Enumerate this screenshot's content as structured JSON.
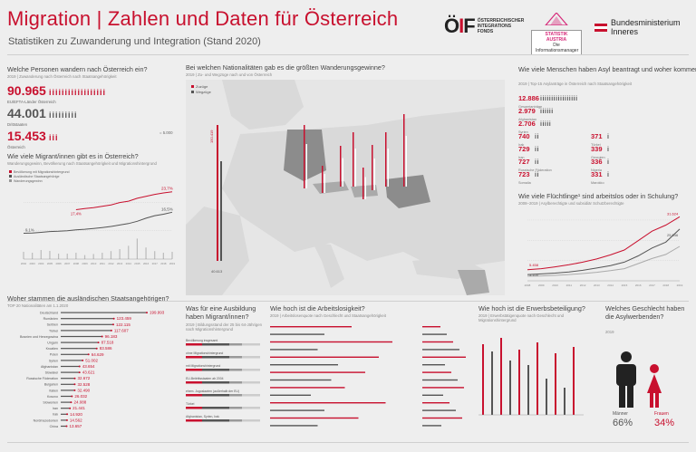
{
  "header": {
    "title": "Migration | Zahlen und Daten für Österreich",
    "subtitle": "Statistiken zu Zuwanderung und Integration (Stand 2020)",
    "logo_oif_line1": "ÖSTERREICHISCHER",
    "logo_oif_line2": "INTEGRATIONS",
    "logo_oif_line3": "FONDS",
    "logo_sa": "STATISTIK AUSTRIA",
    "logo_sa_sub": "Die Informationsmanager",
    "logo_bmi_1": "Bundesministerium",
    "logo_bmi_2": "Inneres"
  },
  "colors": {
    "accent": "#c8102e",
    "dark": "#555555",
    "background": "#eeeeee",
    "map_land": "#d9d9d9",
    "map_highlight": "#8c8c8c"
  },
  "zuwanderung": {
    "title": "Welche Personen wandern nach Österreich ein?",
    "sub": "2019 | Zuwanderung nach Österreich nach Staatsangehörigkeit",
    "rows": [
      {
        "value": "90.965",
        "label": "EU/EFTA-Länder Österreich",
        "style": "red",
        "icons": 18
      },
      {
        "value": "44.001",
        "label": "Drittstaaten",
        "style": "dark",
        "icons": 9
      },
      {
        "value": "15.453",
        "label": "Österreich",
        "style": "red",
        "icons": 3
      }
    ],
    "legend": "= 5.000"
  },
  "migrant_share": {
    "title": "Wie viele Migrant/innen gibt es in Österreich?",
    "sub": "Wanderungsgewinn, Bevölkerung nach Staatsangehörigkeit und Migrationshintergrund",
    "legend": [
      "Bevölkerung mit Migrationshintergrund",
      "Ausländische Staatsangehörige",
      "Wanderungsgewinn"
    ]
  },
  "map": {
    "title": "Bei welchen Nationalitäten gab es die größten Wanderungsgewinne?",
    "sub": "2019 | Zu- und Wegzüge nach und von Österreich",
    "legend": [
      "Zuzüge",
      "Wegzüge"
    ],
    "totals_left": [
      "150.419",
      "40.613"
    ]
  },
  "asyl": {
    "title": "Wie viele Menschen haben Asyl beantragt und woher kommen sie?",
    "sub": "2019 | Top-15 Asylanträge in Österreich nach Staatsangehörigkeit",
    "top": [
      {
        "value": "12.886",
        "label": "Gesamtanträge",
        "icons": 17
      },
      {
        "value": "2.979",
        "label": "Afghanistan",
        "icons": 6
      },
      {
        "value": "2.706",
        "label": "Syrien",
        "icons": 5
      }
    ],
    "left": [
      {
        "value": "740",
        "label": "Irak",
        "icons": 2
      },
      {
        "value": "729",
        "label": "Iran",
        "icons": 2
      },
      {
        "value": "727",
        "label": "Russische Föderation",
        "icons": 2
      },
      {
        "value": "723",
        "label": "Somalia",
        "icons": 2
      }
    ],
    "right": [
      {
        "value": "371",
        "label": "Türkei",
        "icons": 1
      },
      {
        "value": "339",
        "label": "Georgien",
        "icons": 1
      },
      {
        "value": "336",
        "label": "Nigeria",
        "icons": 1
      },
      {
        "value": "331",
        "label": "Marokko",
        "icons": 1
      }
    ]
  },
  "fluechtlinge": {
    "title": "Wie viele Flüchtlinge¹ sind arbeitslos oder in Schulung?",
    "sub": "2008–2019 | Asylberechtigte und subsidiär Schutzberechtigte",
    "labels": {
      "red_start": "5.458",
      "red_end": "31.624",
      "dark_end": "25.546",
      "gray_start": "3.100"
    }
  },
  "staatsangehoerigkeit": {
    "title": "Woher stammen die ausländischen Staatsangehörigen?",
    "sub": "TOP 20 Nationalitäten am 1.1.2020"
  },
  "ausbildung": {
    "title": "Was für eine Ausbildung haben Migrant/innen?",
    "sub": "2019 | Bildungsstand der 25 bis 64-Jährigen nach Migrationshintergrund",
    "rows": [
      "Bevölkerung insgesamt",
      "ohne Migrationshintergrund",
      "mit Migrationshintergrund",
      "EU-Beitrittsstaaten ab 2004",
      "ehem. Jugoslawien (außerhalb der EU)",
      "Türkei",
      "Afghanistan, Syrien, Irak"
    ]
  },
  "arbeitslosigkeit": {
    "title": "Wie hoch ist die Arbeitslosigkeit?",
    "sub": "2019 | Arbeitslosenquote nach Geschlecht und Staatsangehörigkeit"
  },
  "erwerbstaetigkeit": {
    "title": "Wie hoch ist die Erwerbsbeteiligung?",
    "sub": "2019 | Erwerbstätigenquote nach Geschlecht und Migrationshintergrund"
  },
  "geschlecht": {
    "title": "Welches Geschlecht haben die Asylwerbenden?",
    "sub": "2019",
    "male_label": "Männer",
    "male_value": "66%",
    "female_label": "Frauen",
    "female_value": "34%"
  },
  "chart_data": [
    {
      "type": "bar",
      "title": "Woher stammen die ausländischen Staatsangehörigen?",
      "categories": [
        "Deutschland",
        "Rumänien",
        "Serbien",
        "Türkei",
        "Bosnien und Herzegowina",
        "Ungarn",
        "Kroatien",
        "Polen",
        "Syrien",
        "Afghanistan",
        "Slowakei",
        "Russische Föderation",
        "Bulgarien",
        "Italien",
        "Kosovo",
        "Slowenien",
        "Iran",
        "Irak",
        "Nordmazedonien",
        "China"
      ],
      "values": [
        199993,
        123459,
        122115,
        117607,
        96183,
        87518,
        83586,
        64629,
        51002,
        43654,
        43621,
        32672,
        32528,
        32490,
        26032,
        24088,
        21441,
        14920,
        14562,
        13657
      ],
      "value_labels": [
        "199.993",
        "123.459",
        "122.115",
        "117.607",
        "96.183",
        "87.518",
        "83.586",
        "64.629",
        "51.002",
        "43.654",
        "43.621",
        "32.672",
        "32.528",
        "32.490",
        "26.032",
        "24.088",
        "21.441",
        "14.920",
        "14.562",
        "13.657"
      ]
    },
    {
      "type": "line",
      "title": "Wie viele Migrant/innen gibt es in Österreich?",
      "x": [
        "2002",
        "2003",
        "2004",
        "2005",
        "2006",
        "2007",
        "2008",
        "2009",
        "2010",
        "2011",
        "2012",
        "2013",
        "2014",
        "2015",
        "2016",
        "2017",
        "2018",
        "2019"
      ],
      "series": [
        {
          "name": "Bevölkerung mit Migrationshintergrund",
          "values": [
            null,
            null,
            null,
            null,
            null,
            null,
            17.4,
            17.8,
            18.1,
            18.6,
            19.1,
            19.9,
            20.4,
            21.4,
            22.1,
            22.8,
            23.3,
            23.7
          ]
        },
        {
          "name": "Ausländische Staatsangehörige",
          "values": [
            9.1,
            9.2,
            9.4,
            9.7,
            9.8,
            10.0,
            10.3,
            10.5,
            10.8,
            11.1,
            11.5,
            12.0,
            12.5,
            13.3,
            14.4,
            15.3,
            15.8,
            16.5
          ]
        }
      ],
      "value_labels": {
        "mh_start": "17,4%",
        "mh_end": "23,7%",
        "aus_start": "9,1%",
        "aus_end": "16,5%"
      },
      "ylabel": "%"
    },
    {
      "type": "line",
      "title": "Wie viele Flüchtlinge¹ sind arbeitslos oder in Schulung?",
      "x": [
        "2008",
        "2009",
        "2010",
        "2011",
        "2012",
        "2013",
        "2014",
        "2015",
        "2016",
        "2017",
        "2018",
        "2019"
      ],
      "series": [
        {
          "name": "gesamt",
          "values": [
            5458,
            6000,
            6900,
            7900,
            9200,
            10800,
            12800,
            15200,
            19800,
            24500,
            27500,
            31624
          ]
        },
        {
          "name": "arbeitslos",
          "values": [
            3100,
            3400,
            3800,
            4400,
            5200,
            6300,
            7500,
            9200,
            12300,
            16200,
            19100,
            25546
          ]
        },
        {
          "name": "in Schulung",
          "values": [
            2300,
            2400,
            2700,
            3100,
            3600,
            4200,
            5000,
            6000,
            8500,
            11000,
            13000,
            17000
          ]
        }
      ]
    },
    {
      "type": "bar",
      "title": "Welches Geschlecht haben die Asylwerbenden?",
      "categories": [
        "Männer",
        "Frauen"
      ],
      "values": [
        66,
        34
      ]
    }
  ]
}
